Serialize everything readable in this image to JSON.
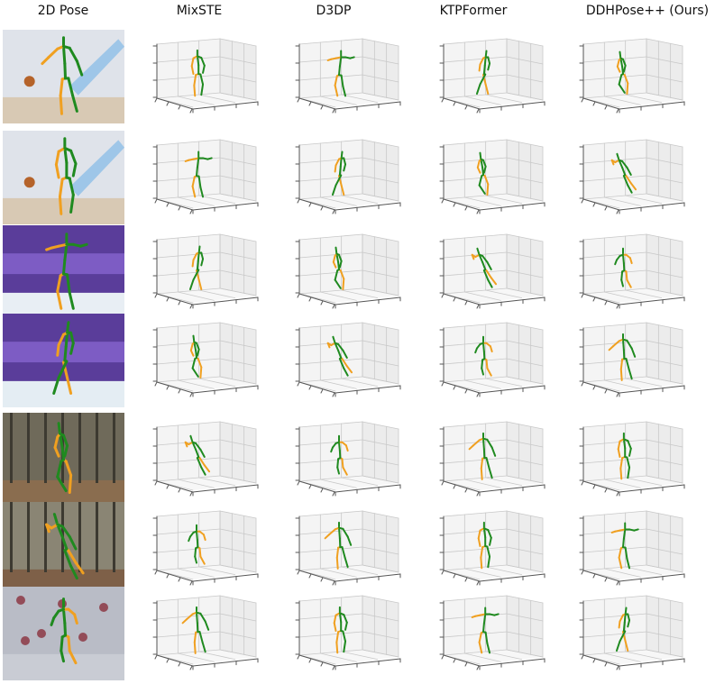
{
  "figure": {
    "columns": [
      {
        "label": "2D Pose"
      },
      {
        "label": "MixSTE"
      },
      {
        "label": "D3DP"
      },
      {
        "label": "KTPFormer"
      },
      {
        "label": "DDHPose++ (Ours)"
      }
    ],
    "rows": [
      {
        "scene": "basketball-player",
        "background": "#dfe3ea",
        "floor": "#d8c9b4",
        "accent": "#9ec6e8"
      },
      {
        "scene": "basketball-player",
        "background": "#dfe3ea",
        "floor": "#d8c9b4",
        "accent": "#9ec6e8"
      },
      {
        "scene": "figure-skater",
        "background": "#5a3d9a",
        "floor": "#e8eef4",
        "accent": "#7d5cc4"
      },
      {
        "scene": "figure-skater",
        "background": "#5a3d9a",
        "floor": "#e4edf3",
        "accent": "#7d5cc4"
      },
      {
        "scene": "forest-runner",
        "background": "#6f6a5a",
        "floor": "#8a6d4f",
        "accent": "#a9a493"
      },
      {
        "scene": "forest-runner",
        "background": "#8a8574",
        "floor": "#7e6048",
        "accent": "#b4ae9c"
      },
      {
        "scene": "distorted-render",
        "background": "#b9bcc6",
        "floor": "#c9ccd4",
        "accent": "#8a2f3c"
      }
    ],
    "colors": {
      "left_limb": "#f0a020",
      "right_limb": "#1f8a1f",
      "grid": "#c8c8c8",
      "pane": "#f4f4f4",
      "axis": "#555555"
    }
  }
}
